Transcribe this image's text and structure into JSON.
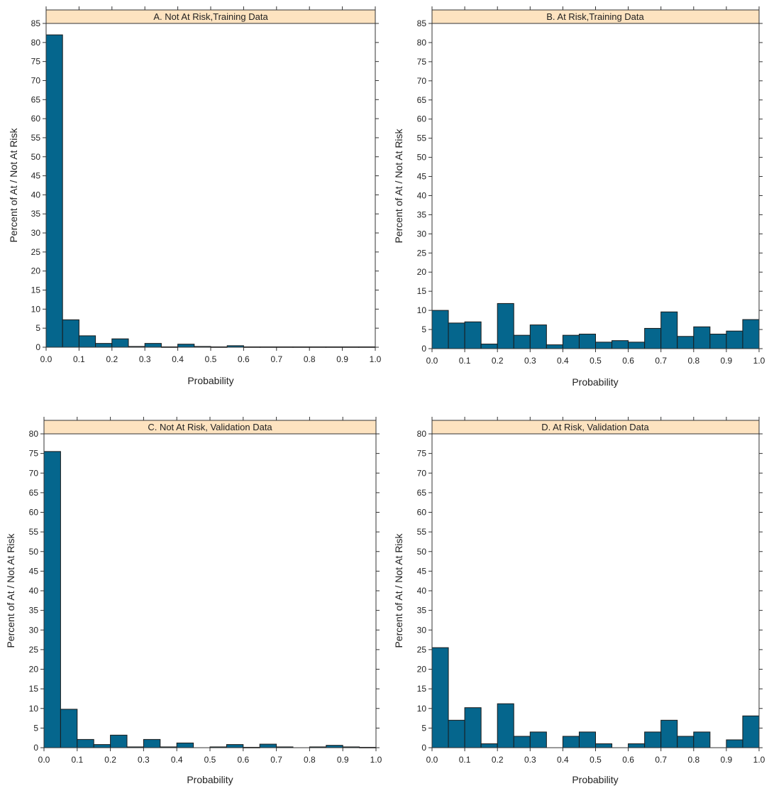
{
  "colors": {
    "bar": "#05668d",
    "strip": "#fde3c0",
    "frame": "#333333"
  },
  "chart_data": [
    {
      "type": "bar",
      "panel": "A",
      "title": "A. Not At Risk,Training Data",
      "xlabel": "Probability",
      "ylabel": "Percent of At / Not At Risk",
      "xlim": [
        0,
        1
      ],
      "ylim": [
        0,
        85
      ],
      "bin_width": 0.05,
      "xticks": [
        "0.0",
        "0.1",
        "0.2",
        "0.3",
        "0.4",
        "0.5",
        "0.6",
        "0.7",
        "0.8",
        "0.9",
        "1.0"
      ],
      "yticks": [
        "0",
        "5",
        "10",
        "15",
        "20",
        "25",
        "30",
        "35",
        "40",
        "45",
        "50",
        "55",
        "60",
        "65",
        "70",
        "75",
        "80",
        "85"
      ],
      "bins_start": [
        0,
        0.05,
        0.1,
        0.15,
        0.2,
        0.25,
        0.3,
        0.35,
        0.4,
        0.45,
        0.5,
        0.55,
        0.6,
        0.65,
        0.7,
        0.75,
        0.8,
        0.85,
        0.9,
        0.95
      ],
      "values": [
        82,
        7.2,
        3,
        1,
        2.2,
        0.2,
        1,
        0.1,
        0.8,
        0.2,
        0.1,
        0.4,
        0.1,
        0.1,
        0.1,
        0.1,
        0.1,
        0.1,
        0.1,
        0.1
      ]
    },
    {
      "type": "bar",
      "panel": "B",
      "title": "B. At Risk,Training Data",
      "xlabel": "Probability",
      "ylabel": "Percent of At / Not At Risk",
      "xlim": [
        0,
        1
      ],
      "ylim": [
        0,
        85
      ],
      "bin_width": 0.05,
      "xticks": [
        "0.0",
        "0.1",
        "0.2",
        "0.3",
        "0.4",
        "0.5",
        "0.6",
        "0.7",
        "0.8",
        "0.9",
        "1.0"
      ],
      "yticks": [
        "0",
        "5",
        "10",
        "15",
        "20",
        "25",
        "30",
        "35",
        "40",
        "45",
        "50",
        "55",
        "60",
        "65",
        "70",
        "75",
        "80",
        "85"
      ],
      "bins_start": [
        0,
        0.05,
        0.1,
        0.15,
        0.2,
        0.25,
        0.3,
        0.35,
        0.4,
        0.45,
        0.5,
        0.55,
        0.6,
        0.65,
        0.7,
        0.75,
        0.8,
        0.85,
        0.9,
        0.95
      ],
      "values": [
        10,
        6.7,
        7,
        1.2,
        11.8,
        3.5,
        6.2,
        1,
        3.5,
        3.8,
        1.7,
        2.1,
        1.7,
        5.3,
        9.6,
        3.2,
        5.7,
        3.8,
        4.6,
        7.6
      ]
    },
    {
      "type": "bar",
      "panel": "C",
      "title": "C. Not At Risk, Validation Data",
      "xlabel": "Probability",
      "ylabel": "Percent of At / Not At Risk",
      "xlim": [
        0,
        1
      ],
      "ylim": [
        0,
        80
      ],
      "bin_width": 0.05,
      "xticks": [
        "0.0",
        "0.1",
        "0.2",
        "0.3",
        "0.4",
        "0.5",
        "0.6",
        "0.7",
        "0.8",
        "0.9",
        "1.0"
      ],
      "yticks": [
        "0",
        "5",
        "10",
        "15",
        "20",
        "25",
        "30",
        "35",
        "40",
        "45",
        "50",
        "55",
        "60",
        "65",
        "70",
        "75",
        "80"
      ],
      "bins_start": [
        0,
        0.05,
        0.1,
        0.15,
        0.2,
        0.25,
        0.3,
        0.35,
        0.4,
        0.45,
        0.5,
        0.55,
        0.6,
        0.65,
        0.7,
        0.75,
        0.8,
        0.85,
        0.9,
        0.95
      ],
      "values": [
        75.5,
        9.8,
        2.1,
        0.8,
        3.2,
        0.2,
        2.1,
        0.2,
        1.2,
        0,
        0.2,
        0.8,
        0.1,
        0.9,
        0.2,
        0,
        0.2,
        0.6,
        0.2,
        0.1
      ]
    },
    {
      "type": "bar",
      "panel": "D",
      "title": "D. At Risk, Validation Data",
      "xlabel": "Probability",
      "ylabel": "Percent of At / Not At Risk",
      "xlim": [
        0,
        1
      ],
      "ylim": [
        0,
        80
      ],
      "bin_width": 0.05,
      "xticks": [
        "0.0",
        "0.1",
        "0.2",
        "0.3",
        "0.4",
        "0.5",
        "0.6",
        "0.7",
        "0.8",
        "0.9",
        "1.0"
      ],
      "yticks": [
        "0",
        "5",
        "10",
        "15",
        "20",
        "25",
        "30",
        "35",
        "40",
        "45",
        "50",
        "55",
        "60",
        "65",
        "70",
        "75",
        "80"
      ],
      "bins_start": [
        0,
        0.05,
        0.1,
        0.15,
        0.2,
        0.25,
        0.3,
        0.35,
        0.4,
        0.45,
        0.5,
        0.55,
        0.6,
        0.65,
        0.7,
        0.75,
        0.8,
        0.85,
        0.9,
        0.95
      ],
      "values": [
        25.5,
        7,
        10.2,
        1,
        11.2,
        2.9,
        4,
        0,
        2.9,
        4,
        1,
        0,
        1,
        4,
        7,
        2.9,
        4,
        0,
        2,
        8.1
      ]
    }
  ]
}
